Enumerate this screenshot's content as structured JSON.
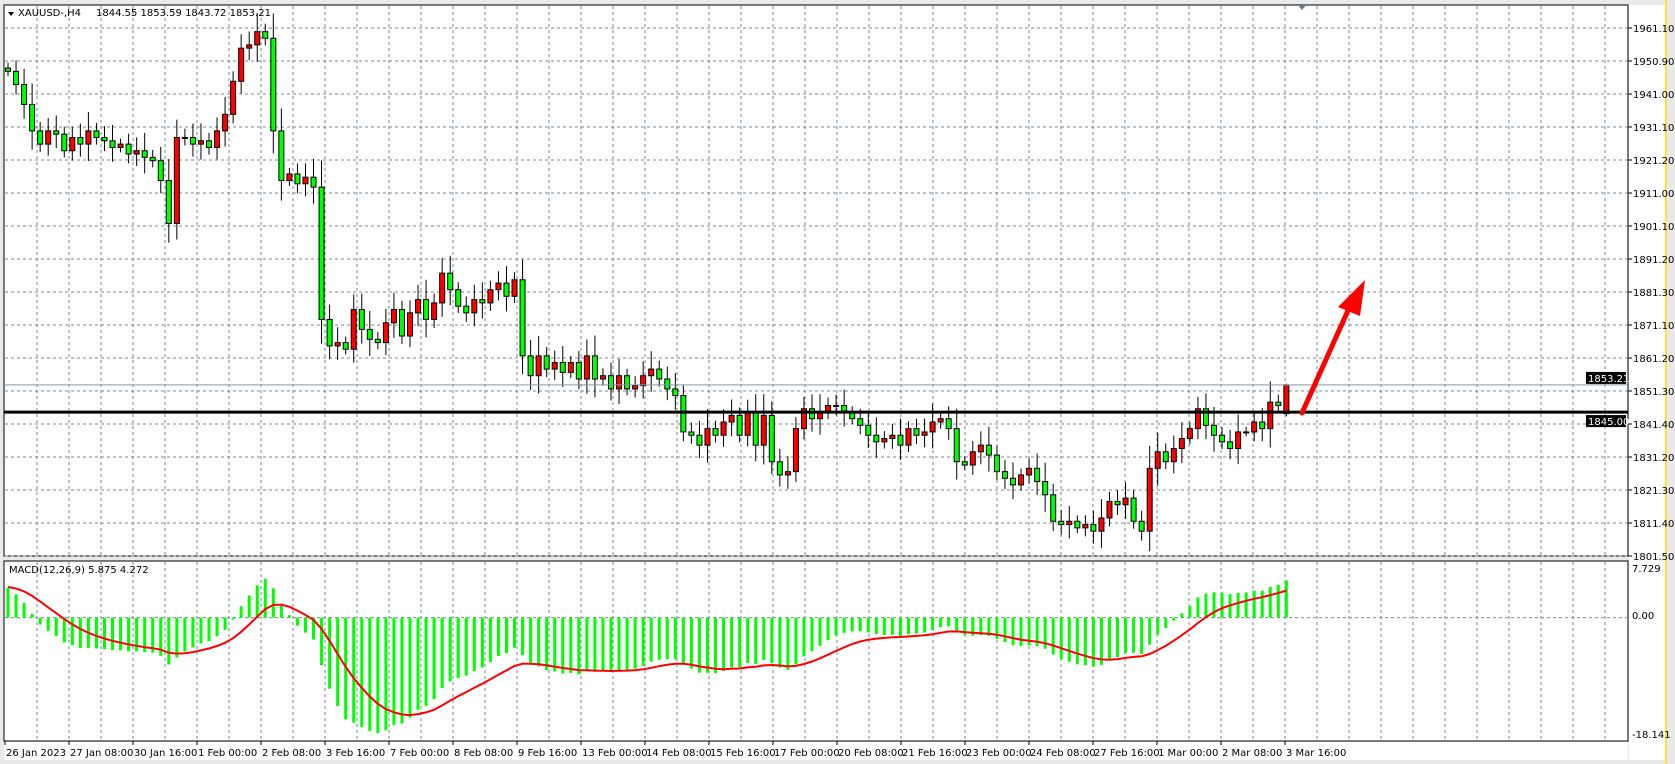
{
  "header": {
    "symbol": "XAUUSD-,H4",
    "ohlc": "1844.55 1853.59 1843.72 1853.21"
  },
  "macd_header": {
    "label": "MACD(12,26,9) 5.875 4.272"
  },
  "price_axis": {
    "labels": [
      "1961.10",
      "1950.90",
      "1941.00",
      "1931.10",
      "1921.20",
      "1911.00",
      "1901.10",
      "1891.20",
      "1881.30",
      "1871.10",
      "1861.20",
      "1851.30",
      "1841.40",
      "1831.20",
      "1821.30",
      "1811.40",
      "1801.50"
    ],
    "current_price_label": "1853.21",
    "level_label": "1845.00"
  },
  "macd_axis": {
    "labels": [
      "7.729",
      "0.00",
      "-18.141"
    ]
  },
  "time_axis": {
    "labels": [
      "26 Jan 2023",
      "27 Jan 08:00",
      "30 Jan 16:00",
      "1 Feb 00:00",
      "2 Feb 08:00",
      "3 Feb 16:00",
      "7 Feb 00:00",
      "8 Feb 08:00",
      "9 Feb 16:00",
      "13 Feb 00:00",
      "14 Feb 08:00",
      "15 Feb 16:00",
      "17 Feb 00:00",
      "20 Feb 08:00",
      "21 Feb 16:00",
      "23 Feb 00:00",
      "24 Feb 08:00",
      "27 Feb 16:00",
      "1 Mar 00:00",
      "2 Mar 08:00",
      "3 Mar 16:00"
    ]
  },
  "colors": {
    "bull_candle": "#ff0000",
    "bear_candle": "#00ff00",
    "macd_histogram": "#00ff00",
    "macd_signal": "#ff0000",
    "horizontal_level": "#000000",
    "arrow": "#ff0000",
    "grid": "#778899",
    "background": "#ffffff"
  },
  "chart_data": {
    "type": "candlestick",
    "symbol": "XAUUSD-",
    "timeframe": "H4",
    "ylim": [
      1801.5,
      1961.1
    ],
    "grid": true,
    "first_open": 1949,
    "last_candle": {
      "open": 1844.55,
      "high": 1853.59,
      "low": 1843.72,
      "close": 1853.21
    },
    "closes": [
      1948,
      1944,
      1938,
      1930,
      1926,
      1930,
      1929,
      1924,
      1928,
      1926,
      1930,
      1928,
      1927,
      1925,
      1926,
      1923,
      1924,
      1922,
      1921,
      1915,
      1902,
      1928,
      1928,
      1926,
      1927,
      1925,
      1930,
      1935,
      1945,
      1955,
      1956,
      1960,
      1958,
      1930,
      1915,
      1917,
      1914,
      1916,
      1913,
      1873,
      1865,
      1866,
      1864,
      1876,
      1870,
      1867,
      1866,
      1872,
      1876,
      1868,
      1875,
      1879,
      1873,
      1878,
      1887,
      1882,
      1877,
      1875,
      1879,
      1878,
      1882,
      1884,
      1880,
      1885,
      1862,
      1856,
      1862,
      1858,
      1860,
      1857,
      1860,
      1855,
      1862,
      1855,
      1856,
      1852,
      1856,
      1852,
      1853,
      1856,
      1858,
      1855,
      1852,
      1850,
      1839,
      1838,
      1835,
      1840,
      1838,
      1842,
      1844,
      1838,
      1845,
      1835,
      1844,
      1830,
      1826,
      1827,
      1840,
      1846,
      1843,
      1845,
      1847,
      1847,
      1845,
      1843,
      1841,
      1838,
      1836,
      1837,
      1838,
      1835,
      1840,
      1838,
      1839,
      1842,
      1843,
      1840,
      1830,
      1829,
      1833,
      1835,
      1832,
      1827,
      1825,
      1823,
      1826,
      1828,
      1824,
      1820,
      1812,
      1811,
      1812,
      1810,
      1811,
      1809,
      1813,
      1818,
      1817,
      1819,
      1812,
      1809,
      1828,
      1833,
      1830,
      1834,
      1837,
      1840,
      1846,
      1841,
      1838,
      1836,
      1834,
      1839,
      1839,
      1842,
      1840,
      1848,
      1847,
      1853.21
    ],
    "horizontal_level": 1845.0,
    "current_price": 1853.21,
    "indicator": {
      "name": "MACD(12,26,9)",
      "main": 5.875,
      "signal": 4.272,
      "ylim": [
        -18.141,
        7.729
      ]
    },
    "annotation": "red up arrow"
  }
}
